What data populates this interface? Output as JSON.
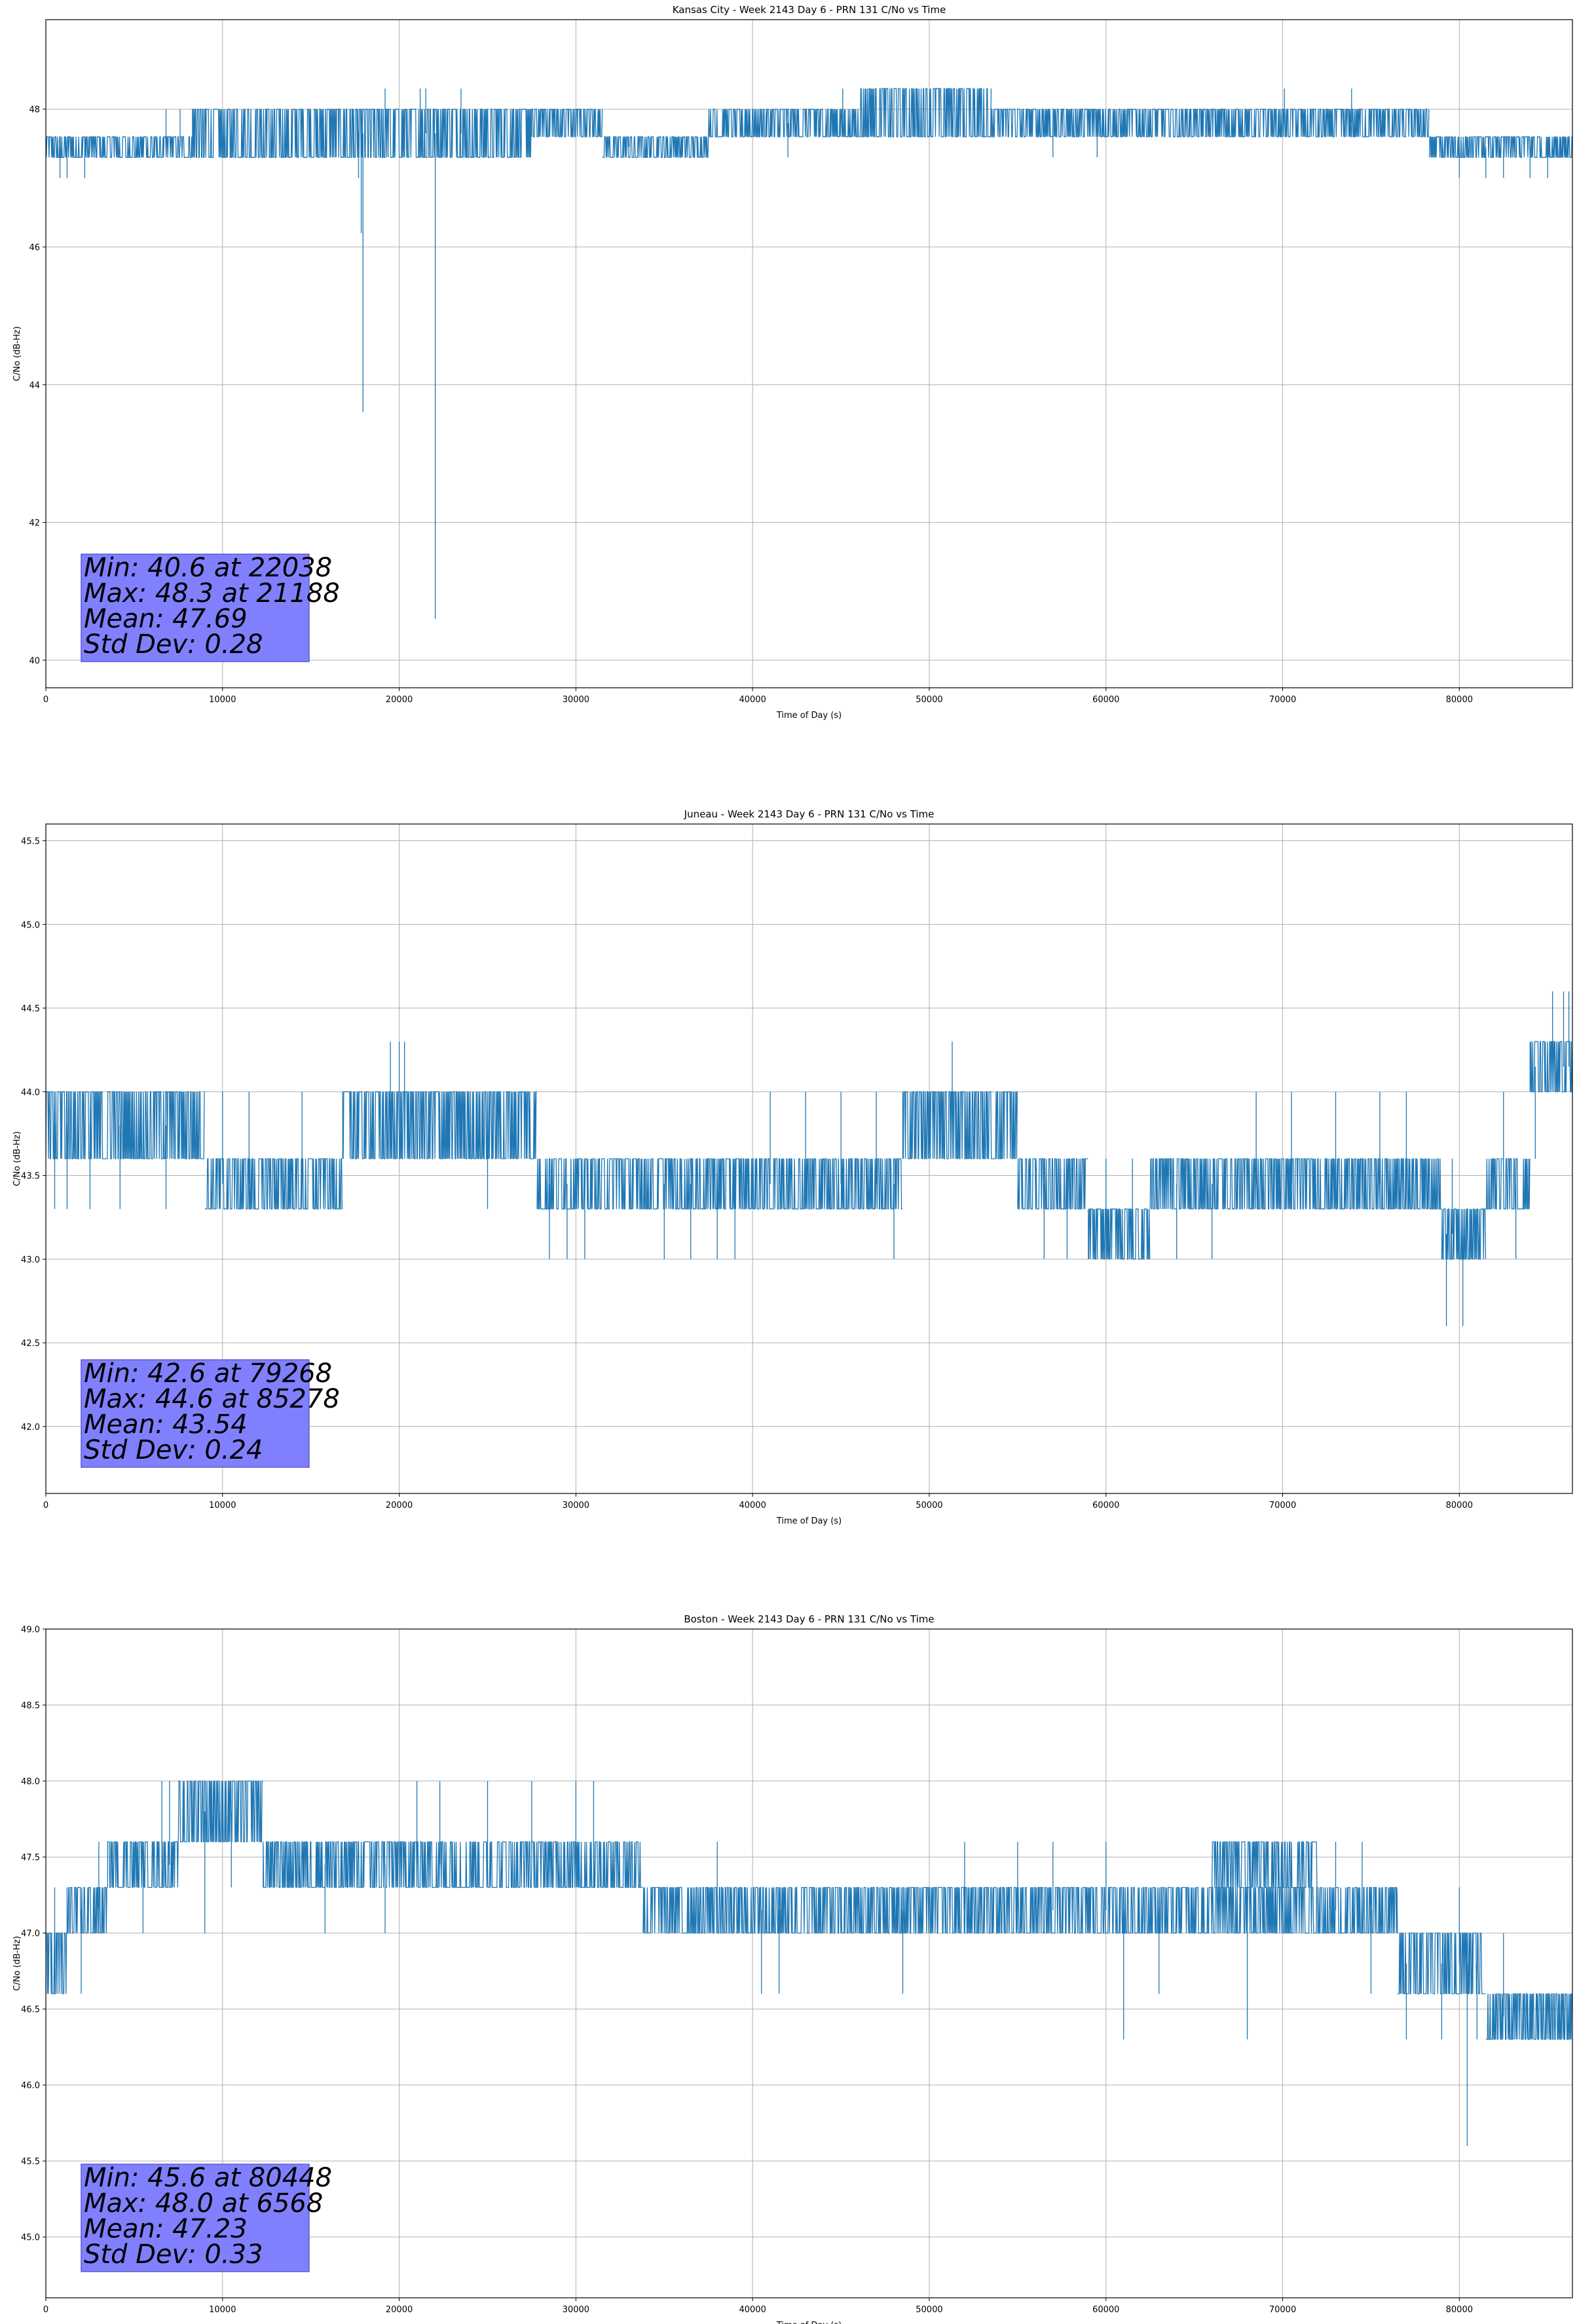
{
  "chart_data": [
    {
      "type": "line",
      "title": "Kansas City - Week 2143 Day 6 - PRN 131 C/No vs Time",
      "xlabel": "Time of Day (s)",
      "ylabel": "C/No (dB-Hz)",
      "xlim": [
        0,
        86400
      ],
      "ylim": [
        39.6,
        49.3
      ],
      "xticks": [
        0,
        10000,
        20000,
        30000,
        40000,
        50000,
        60000,
        70000,
        80000
      ],
      "yticks": [
        40,
        42,
        44,
        46,
        48
      ],
      "ytick_decimals": 0,
      "grid": true,
      "color": "#1f77b4",
      "segments": [
        {
          "x0": 0,
          "x1": 8300,
          "lo": 47.3,
          "hi": 47.6,
          "spikes": [
            [
              800,
              47.0
            ],
            [
              1200,
              47.0
            ],
            [
              2200,
              47.0
            ],
            [
              6800,
              48.0
            ],
            [
              7600,
              48.0
            ]
          ]
        },
        {
          "x0": 8300,
          "x1": 27500,
          "lo": 47.3,
          "hi": 48.0,
          "spikes": [
            [
              17700,
              47.0
            ],
            [
              17850,
              46.2
            ],
            [
              17950,
              43.6
            ],
            [
              19200,
              48.3
            ],
            [
              21188,
              48.3
            ],
            [
              21500,
              48.3
            ],
            [
              22038,
              40.6
            ],
            [
              23500,
              48.3
            ]
          ]
        },
        {
          "x0": 27500,
          "x1": 31500,
          "lo": 47.6,
          "hi": 48.0,
          "spikes": []
        },
        {
          "x0": 31500,
          "x1": 37500,
          "lo": 47.3,
          "hi": 47.6,
          "spikes": [
            [
              33000,
              47.6
            ],
            [
              36000,
              47.6
            ]
          ]
        },
        {
          "x0": 37500,
          "x1": 46000,
          "lo": 47.6,
          "hi": 48.0,
          "spikes": [
            [
              45100,
              48.3
            ],
            [
              42000,
              47.3
            ]
          ]
        },
        {
          "x0": 46000,
          "x1": 53500,
          "lo": 47.6,
          "hi": 48.3,
          "spikes": [
            [
              49000,
              48.3
            ],
            [
              51000,
              48.3
            ]
          ]
        },
        {
          "x0": 53500,
          "x1": 78300,
          "lo": 47.6,
          "hi": 48.0,
          "spikes": [
            [
              57000,
              47.3
            ],
            [
              59500,
              47.3
            ],
            [
              70100,
              48.3
            ],
            [
              73900,
              48.3
            ]
          ]
        },
        {
          "x0": 78300,
          "x1": 86400,
          "lo": 47.3,
          "hi": 47.6,
          "spikes": [
            [
              80000,
              47.0
            ],
            [
              81500,
              47.0
            ],
            [
              82500,
              47.0
            ],
            [
              84000,
              47.0
            ],
            [
              85000,
              47.0
            ]
          ]
        }
      ],
      "annotation": [
        "Min: 40.6 at 22038",
        "Max: 48.3 at 21188",
        "Mean: 47.69",
        "Std Dev: 0.28"
      ]
    },
    {
      "type": "line",
      "title": "Juneau - Week 2143 Day 6 - PRN 131 C/No vs Time",
      "xlabel": "Time of Day (s)",
      "ylabel": "C/No (dB-Hz)",
      "xlim": [
        0,
        86400
      ],
      "ylim": [
        41.6,
        45.6
      ],
      "xticks": [
        0,
        10000,
        20000,
        30000,
        40000,
        50000,
        60000,
        70000,
        80000
      ],
      "yticks": [
        42.0,
        42.5,
        43.0,
        43.5,
        44.0,
        44.5,
        45.0,
        45.5
      ],
      "ytick_decimals": 1,
      "grid": true,
      "color": "#1f77b4",
      "segments": [
        {
          "x0": 0,
          "x1": 9000,
          "lo": 43.6,
          "hi": 44.0,
          "spikes": [
            [
              500,
              43.3
            ],
            [
              1200,
              43.3
            ],
            [
              2500,
              43.3
            ],
            [
              4200,
              43.3
            ],
            [
              6800,
              43.3
            ]
          ]
        },
        {
          "x0": 9000,
          "x1": 16800,
          "lo": 43.3,
          "hi": 43.6,
          "spikes": [
            [
              10000,
              44.0
            ],
            [
              11500,
              44.0
            ],
            [
              14500,
              44.0
            ]
          ]
        },
        {
          "x0": 16800,
          "x1": 27800,
          "lo": 43.6,
          "hi": 44.0,
          "spikes": [
            [
              19500,
              44.3
            ],
            [
              20000,
              44.3
            ],
            [
              20300,
              44.3
            ],
            [
              25000,
              43.3
            ]
          ]
        },
        {
          "x0": 27800,
          "x1": 34000,
          "lo": 43.3,
          "hi": 43.6,
          "spikes": [
            [
              28500,
              43.0
            ],
            [
              29500,
              43.0
            ],
            [
              30500,
              43.0
            ]
          ]
        },
        {
          "x0": 34000,
          "x1": 40000,
          "lo": 43.3,
          "hi": 43.6,
          "spikes": [
            [
              35000,
              43.0
            ],
            [
              36500,
              43.0
            ],
            [
              38000,
              43.0
            ],
            [
              39000,
              43.0
            ]
          ]
        },
        {
          "x0": 40000,
          "x1": 48500,
          "lo": 43.3,
          "hi": 43.6,
          "spikes": [
            [
              41000,
              44.0
            ],
            [
              43000,
              44.0
            ],
            [
              45000,
              44.0
            ],
            [
              47000,
              44.0
            ],
            [
              48000,
              43.0
            ]
          ]
        },
        {
          "x0": 48500,
          "x1": 55000,
          "lo": 43.6,
          "hi": 44.0,
          "spikes": [
            [
              51300,
              44.3
            ]
          ]
        },
        {
          "x0": 55000,
          "x1": 59000,
          "lo": 43.3,
          "hi": 43.6,
          "spikes": [
            [
              56500,
              43.0
            ],
            [
              57800,
              43.0
            ]
          ]
        },
        {
          "x0": 59000,
          "x1": 62500,
          "lo": 43.0,
          "hi": 43.3,
          "spikes": [
            [
              60000,
              43.6
            ],
            [
              61500,
              43.6
            ]
          ]
        },
        {
          "x0": 62500,
          "x1": 79000,
          "lo": 43.3,
          "hi": 43.6,
          "spikes": [
            [
              64000,
              43.0
            ],
            [
              66000,
              43.0
            ],
            [
              68500,
              44.0
            ],
            [
              70500,
              44.0
            ],
            [
              73000,
              44.0
            ],
            [
              75500,
              44.0
            ],
            [
              77000,
              44.0
            ]
          ]
        },
        {
          "x0": 79000,
          "x1": 81500,
          "lo": 43.0,
          "hi": 43.3,
          "spikes": [
            [
              79268,
              42.6
            ],
            [
              80200,
              42.6
            ],
            [
              79600,
              43.6
            ]
          ]
        },
        {
          "x0": 81500,
          "x1": 84000,
          "lo": 43.3,
          "hi": 43.6,
          "spikes": [
            [
              82500,
              44.0
            ],
            [
              83200,
              43.0
            ]
          ]
        },
        {
          "x0": 84000,
          "x1": 86400,
          "lo": 44.0,
          "hi": 44.3,
          "spikes": [
            [
              85278,
              44.6
            ],
            [
              85900,
              44.6
            ],
            [
              86200,
              44.6
            ],
            [
              84300,
              43.6
            ]
          ]
        }
      ],
      "annotation": [
        "Min: 42.6 at 79268",
        "Max: 44.6 at 85278",
        "Mean: 43.54",
        "Std Dev: 0.24"
      ]
    },
    {
      "type": "line",
      "title": "Boston - Week 2143 Day 6 - PRN 131 C/No vs Time",
      "xlabel": "Time of Day (s)",
      "ylabel": "C/No (dB-Hz)",
      "xlim": [
        0,
        86400
      ],
      "ylim": [
        44.6,
        49.0
      ],
      "xticks": [
        0,
        10000,
        20000,
        30000,
        40000,
        50000,
        60000,
        70000,
        80000
      ],
      "yticks": [
        45.0,
        45.5,
        46.0,
        46.5,
        47.0,
        47.5,
        48.0,
        48.5,
        49.0
      ],
      "ytick_decimals": 1,
      "grid": true,
      "color": "#1f77b4",
      "segments": [
        {
          "x0": 0,
          "x1": 1200,
          "lo": 46.6,
          "hi": 47.0,
          "spikes": [
            [
              500,
              47.3
            ]
          ]
        },
        {
          "x0": 1200,
          "x1": 3500,
          "lo": 47.0,
          "hi": 47.3,
          "spikes": [
            [
              2000,
              46.6
            ],
            [
              3000,
              47.6
            ]
          ]
        },
        {
          "x0": 3500,
          "x1": 7500,
          "lo": 47.3,
          "hi": 47.6,
          "spikes": [
            [
              5500,
              47.0
            ],
            [
              6568,
              48.0
            ],
            [
              7000,
              48.0
            ]
          ]
        },
        {
          "x0": 7500,
          "x1": 12300,
          "lo": 47.6,
          "hi": 48.0,
          "spikes": [
            [
              9000,
              47.0
            ],
            [
              10500,
              47.3
            ]
          ]
        },
        {
          "x0": 12300,
          "x1": 33800,
          "lo": 47.3,
          "hi": 47.6,
          "spikes": [
            [
              15800,
              47.0
            ],
            [
              19200,
              47.0
            ],
            [
              21000,
              48.0
            ],
            [
              22300,
              48.0
            ],
            [
              25000,
              48.0
            ],
            [
              27500,
              48.0
            ],
            [
              30000,
              48.0
            ],
            [
              31000,
              48.0
            ]
          ]
        },
        {
          "x0": 33800,
          "x1": 72000,
          "lo": 47.0,
          "hi": 47.3,
          "spikes": [
            [
              38000,
              47.6
            ],
            [
              40500,
              46.6
            ],
            [
              41500,
              46.6
            ],
            [
              48500,
              46.6
            ],
            [
              52000,
              47.6
            ],
            [
              55000,
              47.6
            ],
            [
              57000,
              47.6
            ],
            [
              60000,
              47.6
            ],
            [
              61000,
              46.3
            ],
            [
              63000,
              46.6
            ],
            [
              68000,
              46.3
            ],
            [
              70000,
              47.6
            ]
          ]
        },
        {
          "x0": 66000,
          "x1": 72000,
          "lo": 47.3,
          "hi": 47.6,
          "spikes": []
        },
        {
          "x0": 72000,
          "x1": 76500,
          "lo": 47.0,
          "hi": 47.3,
          "spikes": [
            [
              73000,
              47.6
            ],
            [
              74500,
              47.6
            ],
            [
              75000,
              46.6
            ]
          ]
        },
        {
          "x0": 76500,
          "x1": 81500,
          "lo": 46.6,
          "hi": 47.0,
          "spikes": [
            [
              77000,
              46.3
            ],
            [
              79000,
              46.3
            ],
            [
              80000,
              47.3
            ],
            [
              80448,
              45.6
            ],
            [
              81000,
              46.3
            ]
          ]
        },
        {
          "x0": 81500,
          "x1": 86400,
          "lo": 46.3,
          "hi": 46.6,
          "spikes": [
            [
              82500,
              47.0
            ]
          ]
        }
      ],
      "annotation": [
        "Min: 45.6 at 80448",
        "Max: 48.0 at 6568",
        "Mean: 47.23",
        "Std Dev: 0.33"
      ]
    }
  ]
}
